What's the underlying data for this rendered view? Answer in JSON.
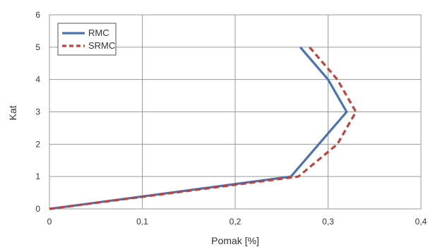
{
  "chart_data": {
    "type": "line",
    "xlabel": "Pomak [%]",
    "ylabel": "Kat",
    "xlim": [
      0,
      0.4
    ],
    "ylim": [
      0,
      6
    ],
    "xticks": [
      "0",
      "0,1",
      "0,2",
      "0,3",
      "0,4"
    ],
    "yticks": [
      "0",
      "1",
      "2",
      "3",
      "4",
      "5",
      "6"
    ],
    "grid": true,
    "legend_position": "top-left",
    "series": [
      {
        "name": "RMC",
        "color": "#4a73b5",
        "style": "solid",
        "x": [
          0,
          0.26,
          0.32,
          0.3,
          0.27
        ],
        "y": [
          0,
          1,
          3,
          4,
          5
        ]
      },
      {
        "name": "SRMC",
        "color": "#c0433b",
        "style": "dashed",
        "x": [
          0,
          0.268,
          0.31,
          0.33,
          0.31,
          0.28
        ],
        "y": [
          0,
          1,
          2,
          3,
          4,
          5
        ]
      }
    ]
  }
}
